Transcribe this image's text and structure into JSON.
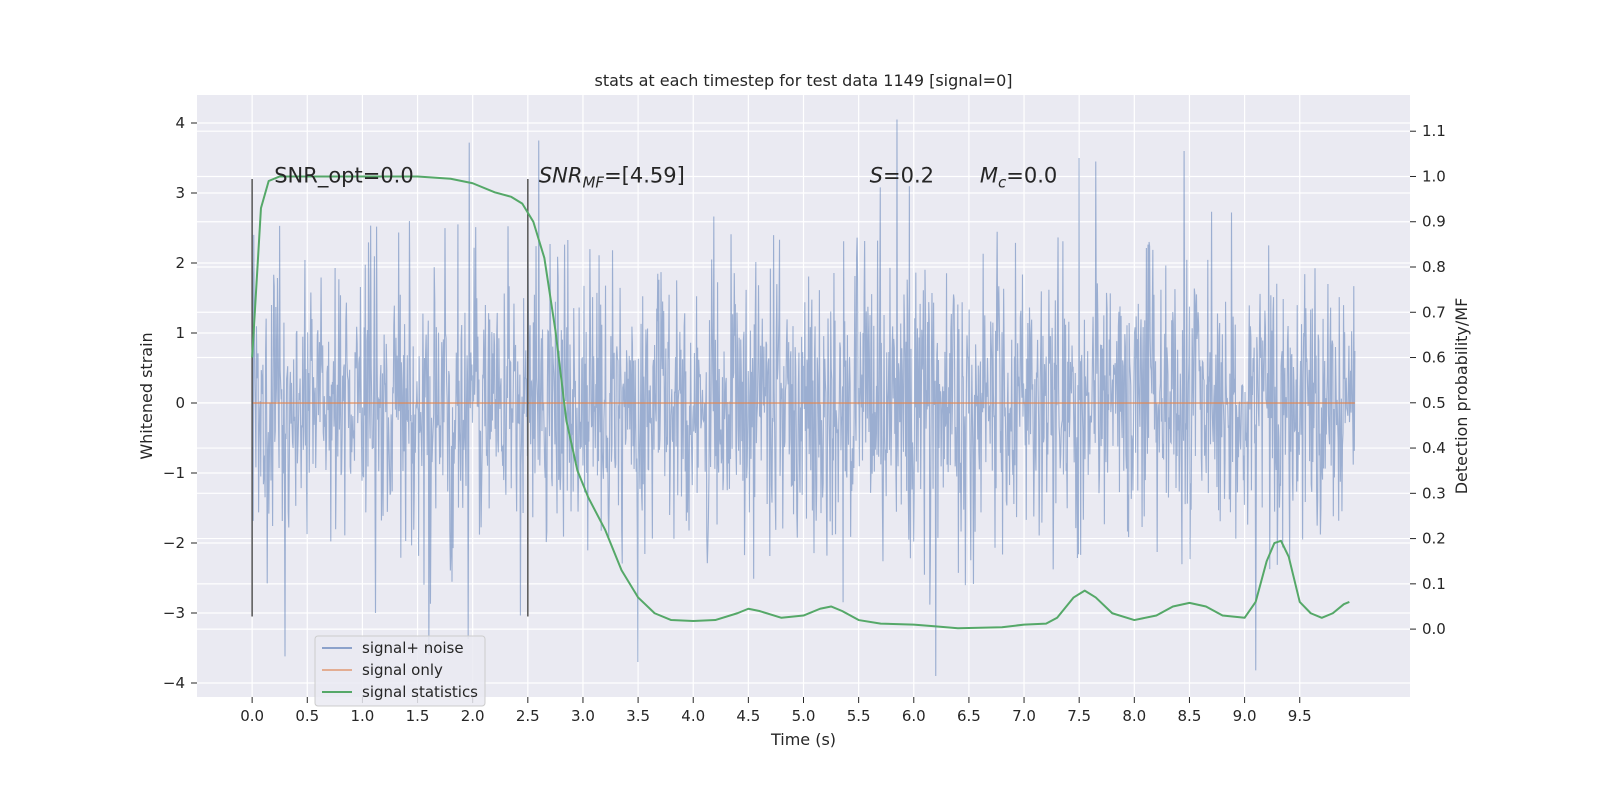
{
  "chart_data": {
    "type": "line",
    "title": "stats at each timestep for test data 1149 [signal=0]",
    "xlabel": "Time (s)",
    "ylabel": "Whitened strain",
    "y2label": "Detection probability/MF",
    "xlim": [
      -0.5,
      10.5
    ],
    "ylim": [
      -4.2,
      4.4
    ],
    "y2lim": [
      -0.15,
      1.18
    ],
    "x_ticks": [
      0.0,
      0.5,
      1.0,
      1.5,
      2.0,
      2.5,
      3.0,
      3.5,
      4.0,
      4.5,
      5.0,
      5.5,
      6.0,
      6.5,
      7.0,
      7.5,
      8.0,
      8.5,
      9.0,
      9.5
    ],
    "y_ticks": [
      -4,
      -3,
      -2,
      -1,
      0,
      1,
      2,
      3,
      4
    ],
    "y2_ticks": [
      0.0,
      0.1,
      0.2,
      0.3,
      0.4,
      0.5,
      0.6,
      0.7,
      0.8,
      0.9,
      1.0,
      1.1
    ],
    "grid": true,
    "legend_position": "lower-left",
    "annotations": [
      {
        "text": "SNR_opt=0.0",
        "x": 0.2,
        "y": 3.15
      },
      {
        "text": "SNR",
        "sub": "MF",
        "suffix": "=[4.59]",
        "x": 2.6,
        "y": 3.15
      },
      {
        "text": "S",
        "suffix": "=0.2",
        "x": 5.6,
        "y": 3.15
      },
      {
        "text": "M",
        "sub": "c",
        "suffix": "=0.0",
        "x": 6.6,
        "y": 3.15
      }
    ],
    "vlines": [
      0.0,
      2.5
    ],
    "vline_range": [
      -3.05,
      3.2
    ],
    "colors": {
      "noise": "#4c72b0",
      "signal": "#dd8452",
      "stats": "#55a868",
      "vline": "#555555",
      "bg": "#eaeaf2"
    },
    "noise": {
      "x_start": 0.0,
      "x_end": 10.0,
      "samples": 2048,
      "std": 1.0,
      "min": -3.9,
      "max": 4.05,
      "spikes": [
        {
          "x": 1.97,
          "y": 3.72
        },
        {
          "x": 2.6,
          "y": 3.75
        },
        {
          "x": 5.85,
          "y": 4.05
        },
        {
          "x": 7.5,
          "y": 3.5
        },
        {
          "x": 7.65,
          "y": 3.45
        },
        {
          "x": 8.45,
          "y": 3.6
        },
        {
          "x": 9.1,
          "y": -3.82
        },
        {
          "x": 6.2,
          "y": -3.9
        },
        {
          "x": 3.5,
          "y": -3.7
        },
        {
          "x": 0.3,
          "y": -3.62
        },
        {
          "x": 1.6,
          "y": -3.6
        }
      ]
    },
    "series": [
      {
        "name": "signal+ noise",
        "axis": "left",
        "color": "#4c72b0"
      },
      {
        "name": "signal only",
        "axis": "left",
        "color": "#dd8452",
        "x": [
          0.0,
          10.0
        ],
        "values": [
          0.0,
          0.0
        ]
      },
      {
        "name": "signal statistics",
        "axis": "right",
        "color": "#55a868",
        "x": [
          0.0,
          0.08,
          0.15,
          0.25,
          0.5,
          1.0,
          1.5,
          1.8,
          2.0,
          2.2,
          2.35,
          2.45,
          2.55,
          2.65,
          2.75,
          2.85,
          2.95,
          3.05,
          3.2,
          3.35,
          3.5,
          3.65,
          3.8,
          4.0,
          4.2,
          4.4,
          4.5,
          4.6,
          4.8,
          5.0,
          5.15,
          5.25,
          5.35,
          5.5,
          5.7,
          6.0,
          6.2,
          6.4,
          6.8,
          7.0,
          7.2,
          7.3,
          7.45,
          7.55,
          7.65,
          7.8,
          8.0,
          8.2,
          8.35,
          8.5,
          8.65,
          8.8,
          9.0,
          9.1,
          9.2,
          9.27,
          9.33,
          9.4,
          9.5,
          9.6,
          9.7,
          9.8,
          9.9,
          9.95
        ],
        "values": [
          0.6,
          0.93,
          0.99,
          1.0,
          1.0,
          1.0,
          1.0,
          0.995,
          0.985,
          0.965,
          0.955,
          0.94,
          0.9,
          0.82,
          0.66,
          0.46,
          0.35,
          0.29,
          0.22,
          0.13,
          0.07,
          0.035,
          0.02,
          0.018,
          0.02,
          0.035,
          0.045,
          0.04,
          0.025,
          0.03,
          0.045,
          0.05,
          0.04,
          0.02,
          0.012,
          0.01,
          0.006,
          0.002,
          0.004,
          0.01,
          0.012,
          0.025,
          0.07,
          0.085,
          0.07,
          0.035,
          0.02,
          0.03,
          0.05,
          0.058,
          0.05,
          0.03,
          0.025,
          0.06,
          0.15,
          0.19,
          0.195,
          0.16,
          0.06,
          0.035,
          0.025,
          0.035,
          0.055,
          0.06
        ]
      }
    ]
  }
}
